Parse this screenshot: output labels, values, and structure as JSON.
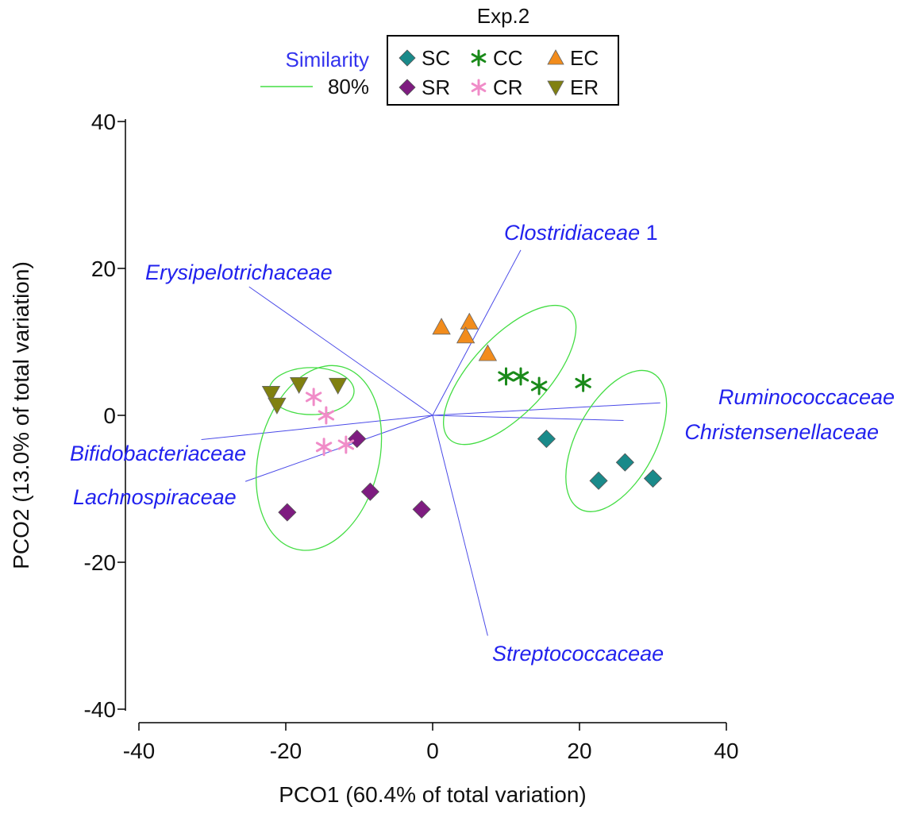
{
  "chart_data": {
    "type": "scatter",
    "title": "Exp.2",
    "xlabel": "PCO1 (60.4% of total variation)",
    "ylabel": "PCO2 (13.0% of total variation)",
    "xlim": [
      -40,
      40
    ],
    "ylim": [
      -40,
      40
    ],
    "xticks": [
      "-40",
      "-20",
      "0",
      "20",
      "40"
    ],
    "yticks": [
      "-40",
      "-20",
      "0",
      "20",
      "40"
    ],
    "grid": false,
    "legend_position": "top-center",
    "similarity": {
      "title": "Similarity",
      "label": "80%",
      "color": "#44dd44"
    },
    "series": [
      {
        "name": "SC",
        "marker": "diamond",
        "color": "#1a8a8a",
        "points": [
          [
            15.5,
            -3.2
          ],
          [
            22.6,
            -8.9
          ],
          [
            26.2,
            -6.4
          ],
          [
            30,
            -8.6
          ]
        ]
      },
      {
        "name": "SR",
        "marker": "diamond",
        "color": "#7e1c80",
        "points": [
          [
            -10.3,
            -3.2
          ],
          [
            -8.5,
            -10.4
          ],
          [
            -19.8,
            -13.2
          ],
          [
            -1.5,
            -12.8
          ]
        ]
      },
      {
        "name": "CC",
        "marker": "asterisk",
        "color": "#1a8a1a",
        "points": [
          [
            10,
            5.3
          ],
          [
            12,
            5.3
          ],
          [
            14.5,
            4
          ],
          [
            20.5,
            4.4
          ]
        ]
      },
      {
        "name": "CR",
        "marker": "asterisk",
        "color": "#f08cc8",
        "points": [
          [
            -16.2,
            2.5
          ],
          [
            -14.5,
            0
          ],
          [
            -14.8,
            -4.3
          ],
          [
            -11.8,
            -4
          ]
        ]
      },
      {
        "name": "EC",
        "marker": "triangle-up",
        "color": "#f28c1c",
        "points": [
          [
            1.2,
            12
          ],
          [
            5,
            12.7
          ],
          [
            4.5,
            10.8
          ],
          [
            7.5,
            8.4
          ]
        ]
      },
      {
        "name": "ER",
        "marker": "triangle-down",
        "color": "#808010",
        "points": [
          [
            -22,
            3
          ],
          [
            -21.2,
            1.4
          ],
          [
            -18.2,
            4.2
          ],
          [
            -12.9,
            4.1
          ]
        ]
      }
    ],
    "vectors": [
      {
        "name": "Clostridiaceae",
        "suffix": " 1",
        "x": 12,
        "y": 22.5
      },
      {
        "name": "Erysipelotrichaceae",
        "suffix": "",
        "x": -25,
        "y": 17.5
      },
      {
        "name": "Ruminococcaceae",
        "suffix": "",
        "x": 31,
        "y": 1.7
      },
      {
        "name": "Christensenellaceae",
        "suffix": "",
        "x": 26,
        "y": -0.7
      },
      {
        "name": "Bifidobacteriaceae",
        "suffix": "",
        "x": -31.5,
        "y": -3.3
      },
      {
        "name": "Lachnospiraceae",
        "suffix": "",
        "x": -25.5,
        "y": -9
      },
      {
        "name": "Streptococcaceae",
        "suffix": "",
        "x": 7.5,
        "y": -30
      }
    ],
    "similarity_groups": [
      {
        "cx": -16.5,
        "cy": 3.3,
        "rx": 5.8,
        "ry": 3.2,
        "angle": 0
      },
      {
        "cx": -15.5,
        "cy": -5.8,
        "rx": 8.2,
        "ry": 12.8,
        "angle": 14
      },
      {
        "cx": 10.5,
        "cy": 5.5,
        "rx": 12,
        "ry": 5.2,
        "angle": -47
      },
      {
        "cx": 25,
        "cy": -3.5,
        "rx": 10.5,
        "ry": 5.4,
        "angle": -62
      }
    ]
  }
}
